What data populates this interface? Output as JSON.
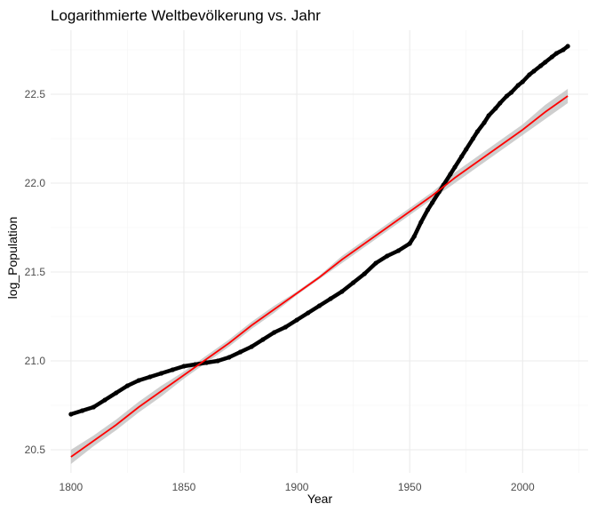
{
  "chart_data": {
    "type": "line",
    "title": "Logarithmierte Weltbevölkerung vs. Jahr",
    "xlabel": "Year",
    "ylabel": "log_Population",
    "xlim": [
      1791,
      2029
    ],
    "ylim": [
      20.37,
      22.86
    ],
    "x_ticks": [
      1800,
      1850,
      1900,
      1950,
      2000
    ],
    "y_ticks": [
      20.5,
      21.0,
      21.5,
      22.0,
      22.5
    ],
    "x_tick_labels": [
      "1800",
      "1850",
      "1900",
      "1950",
      "2000"
    ],
    "y_tick_labels": [
      "20.5",
      "21.0",
      "21.5",
      "22.0",
      "22.5"
    ],
    "grid": true,
    "legend": "none",
    "series": [
      {
        "kind": "points",
        "color": "#000000",
        "x": [
          1800,
          1805,
          1810,
          1815,
          1820,
          1825,
          1830,
          1835,
          1840,
          1845,
          1850,
          1855,
          1860,
          1865,
          1870,
          1875,
          1880,
          1885,
          1890,
          1895,
          1900,
          1905,
          1910,
          1915,
          1920,
          1925,
          1930,
          1935,
          1940,
          1945,
          1950,
          1952,
          1955,
          1958,
          1960,
          1963,
          1965,
          1968,
          1970,
          1973,
          1975,
          1978,
          1980,
          1983,
          1985,
          1988,
          1990,
          1993,
          1995,
          1998,
          2000,
          2003,
          2005,
          2008,
          2010,
          2013,
          2015,
          2018,
          2020
        ],
        "y": [
          20.7,
          20.72,
          20.74,
          20.78,
          20.82,
          20.86,
          20.89,
          20.91,
          20.93,
          20.95,
          20.97,
          20.98,
          20.99,
          21.0,
          21.02,
          21.05,
          21.08,
          21.12,
          21.16,
          21.19,
          21.23,
          21.27,
          21.31,
          21.35,
          21.39,
          21.44,
          21.49,
          21.55,
          21.59,
          21.62,
          21.66,
          21.7,
          21.78,
          21.85,
          21.89,
          21.95,
          21.99,
          22.05,
          22.09,
          22.15,
          22.19,
          22.25,
          22.29,
          22.34,
          22.38,
          22.42,
          22.45,
          22.49,
          22.51,
          22.55,
          22.57,
          22.61,
          22.63,
          22.66,
          22.68,
          22.71,
          22.73,
          22.75,
          22.77
        ]
      },
      {
        "kind": "linear_fit",
        "color": "#ff0000",
        "band_color": "#bebebe",
        "x": [
          1800,
          1810,
          1820,
          1830,
          1840,
          1850,
          1860,
          1870,
          1880,
          1890,
          1900,
          1910,
          1920,
          1930,
          1940,
          1950,
          1960,
          1970,
          1980,
          1990,
          2000,
          2010,
          2020
        ],
        "y": [
          20.46,
          20.55,
          20.64,
          20.74,
          20.83,
          20.92,
          21.01,
          21.1,
          21.2,
          21.29,
          21.38,
          21.47,
          21.57,
          21.66,
          21.75,
          21.84,
          21.93,
          22.03,
          22.12,
          22.21,
          22.3,
          22.4,
          22.49
        ],
        "lower": [
          20.42,
          20.52,
          20.61,
          20.71,
          20.8,
          20.9,
          20.99,
          21.08,
          21.18,
          21.27,
          21.37,
          21.46,
          21.55,
          21.64,
          21.73,
          21.82,
          21.91,
          22.0,
          22.09,
          22.18,
          22.27,
          22.36,
          22.45
        ],
        "upper": [
          20.5,
          20.58,
          20.67,
          20.77,
          20.86,
          20.94,
          21.03,
          21.12,
          21.22,
          21.31,
          21.39,
          21.48,
          21.59,
          21.68,
          21.77,
          21.86,
          21.95,
          22.06,
          22.15,
          22.24,
          22.33,
          22.44,
          22.53
        ]
      }
    ]
  }
}
